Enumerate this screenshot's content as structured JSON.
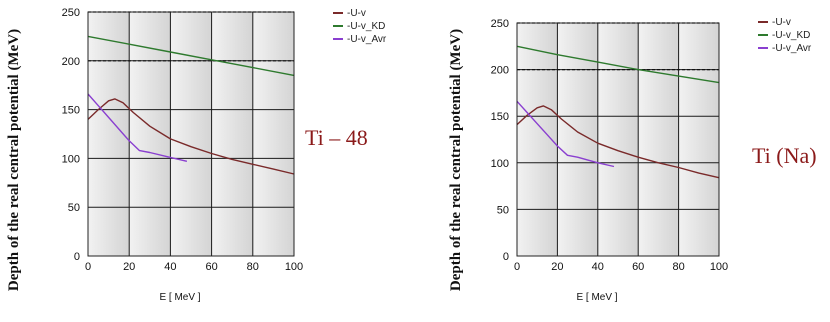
{
  "colors": {
    "u_v": "#7a2a2a",
    "u_v_kd": "#2e7a2e",
    "u_v_avr": "#8a3fd0",
    "stripe_light": "#f2f2f2",
    "stripe_dark": "#d4d4d4",
    "annotation": "#8b1a1a"
  },
  "chart_data": [
    {
      "type": "line",
      "xlabel": "E [ MeV ]",
      "ylabel": "Depth of the real central potential (MeV)",
      "annotation": "Ti – 48",
      "xlim": [
        0,
        100
      ],
      "ylim": [
        0,
        250
      ],
      "x_ticks": [
        "0",
        "20",
        "40",
        "60",
        "80",
        "100"
      ],
      "y_ticks": [
        "0",
        "50",
        "100",
        "150",
        "200",
        "250"
      ],
      "legend_position": "top-right",
      "series": [
        {
          "name": "-U-v",
          "color_key": "u_v",
          "x": [
            0,
            5,
            10,
            13,
            17,
            22,
            30,
            40,
            50,
            60,
            70,
            80,
            90,
            100
          ],
          "y": [
            140,
            150,
            159,
            161,
            157,
            147,
            133,
            120,
            112,
            105,
            99,
            94,
            89,
            84
          ]
        },
        {
          "name": "-U-v_KD",
          "color_key": "u_v_kd",
          "x": [
            0,
            20,
            40,
            60,
            80,
            100
          ],
          "y": [
            225,
            217,
            209,
            201,
            193,
            185
          ]
        },
        {
          "name": "-U-v_Avr",
          "color_key": "u_v_avr",
          "x": [
            0,
            5,
            10,
            15,
            20,
            25,
            30,
            40,
            48
          ],
          "y": [
            166,
            154,
            142,
            130,
            118,
            108,
            106,
            101,
            97
          ]
        }
      ]
    },
    {
      "type": "line",
      "xlabel": "E [ MeV ]",
      "ylabel": "Depth of the real central potential (MeV)",
      "annotation": "Ti (Na)",
      "xlim": [
        0,
        100
      ],
      "ylim": [
        0,
        250
      ],
      "x_ticks": [
        "0",
        "20",
        "40",
        "60",
        "80",
        "100"
      ],
      "y_ticks": [
        "0",
        "50",
        "100",
        "150",
        "200",
        "250"
      ],
      "legend_position": "top-right",
      "series": [
        {
          "name": "-U-v",
          "color_key": "u_v",
          "x": [
            0,
            5,
            10,
            13,
            17,
            22,
            30,
            40,
            50,
            60,
            70,
            80,
            90,
            100
          ],
          "y": [
            141,
            151,
            159,
            161,
            157,
            147,
            133,
            121,
            113,
            106,
            100,
            95,
            89,
            84
          ]
        },
        {
          "name": "-U-v_KD",
          "color_key": "u_v_kd",
          "x": [
            0,
            20,
            40,
            60,
            80,
            100
          ],
          "y": [
            225,
            216,
            208,
            200,
            193,
            186
          ]
        },
        {
          "name": "-U-v_Avr",
          "color_key": "u_v_avr",
          "x": [
            0,
            5,
            10,
            15,
            20,
            25,
            30,
            40,
            48
          ],
          "y": [
            166,
            154,
            142,
            130,
            118,
            108,
            106,
            100,
            96
          ]
        }
      ]
    }
  ]
}
